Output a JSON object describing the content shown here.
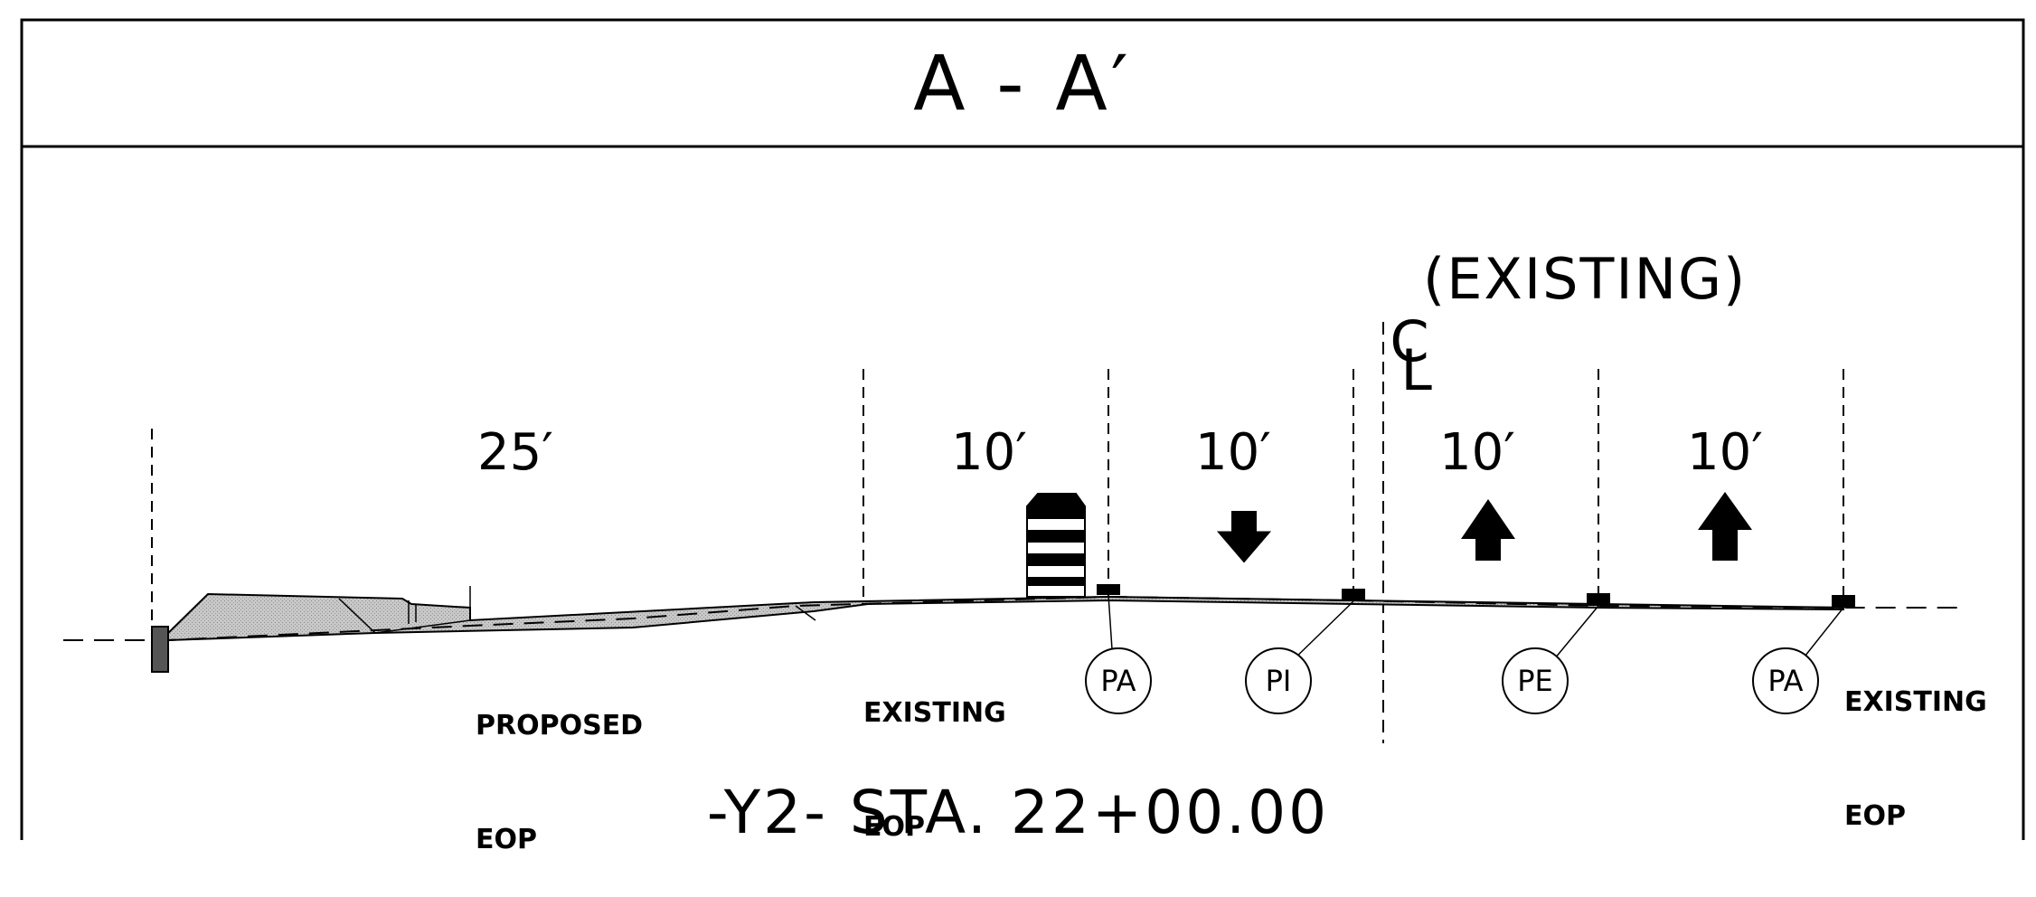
{
  "title": "A - A′",
  "centerline": {
    "symbol": "C",
    "sub": "L",
    "label": "(EXISTING)"
  },
  "dimensions": [
    "25′",
    "10′",
    "10′",
    "10′",
    "10′"
  ],
  "notes": {
    "proposed_eop": [
      "PROPOSED",
      "EOP"
    ],
    "existing_eop_left": [
      "EXISTING",
      "EOP"
    ],
    "existing_eop_right": [
      "EXISTING",
      "EOP"
    ]
  },
  "callouts": [
    "PA",
    "PI",
    "PE",
    "PA"
  ],
  "station": "-Y2-  STA.  22+00.00"
}
